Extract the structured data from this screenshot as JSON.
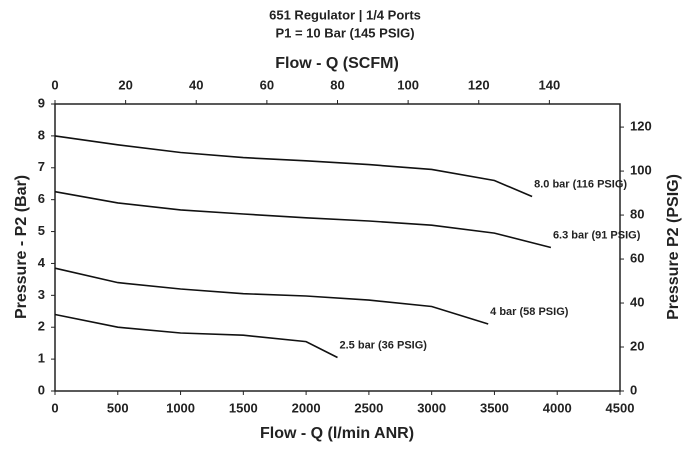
{
  "chart_data": {
    "type": "line",
    "title": "651 Regulator | 1/4 Ports",
    "subtitle": "P1 = 10 Bar (145 PSIG)",
    "x_label": "Flow - Q (l/min ANR)",
    "x2_label": "Flow - Q (SCFM)",
    "y_label": "Pressure - P2 (Bar)",
    "y2_label": "Pressure P2 (PSIG)",
    "xlim": [
      0,
      4500
    ],
    "xticks": [
      0,
      500,
      1000,
      1500,
      2000,
      2500,
      3000,
      3500,
      4000,
      4500
    ],
    "x2lim": [
      0,
      160
    ],
    "x2ticks": [
      0,
      20,
      40,
      60,
      80,
      100,
      120,
      140
    ],
    "ylim": [
      0,
      9
    ],
    "yticks": [
      0,
      1,
      2,
      3,
      4,
      5,
      6,
      7,
      8,
      9
    ],
    "y2lim": [
      0,
      130.5
    ],
    "y2ticks": [
      0,
      20,
      40,
      60,
      80,
      100,
      120
    ],
    "series": [
      {
        "name": "8.0 bar (116 PSIG)",
        "color": "#111111",
        "x": [
          0,
          500,
          1000,
          1500,
          2000,
          2500,
          3000,
          3500,
          3800
        ],
        "values": [
          8.0,
          7.72,
          7.48,
          7.32,
          7.22,
          7.1,
          6.95,
          6.6,
          6.1
        ]
      },
      {
        "name": "6.3 bar (91 PSIG)",
        "color": "#111111",
        "x": [
          0,
          500,
          1000,
          1500,
          2000,
          2500,
          3000,
          3500,
          3950
        ],
        "values": [
          6.25,
          5.9,
          5.68,
          5.55,
          5.43,
          5.33,
          5.2,
          4.95,
          4.5
        ]
      },
      {
        "name": "4 bar (58 PSIG)",
        "color": "#111111",
        "x": [
          0,
          500,
          1000,
          1500,
          2000,
          2500,
          3000,
          3450
        ],
        "values": [
          3.85,
          3.4,
          3.2,
          3.05,
          2.98,
          2.85,
          2.65,
          2.1
        ]
      },
      {
        "name": "2.5 bar (36 PSIG)",
        "color": "#111111",
        "x": [
          0,
          500,
          1000,
          1500,
          2000,
          2250
        ],
        "values": [
          2.4,
          2.0,
          1.82,
          1.75,
          1.55,
          1.05
        ]
      }
    ]
  }
}
